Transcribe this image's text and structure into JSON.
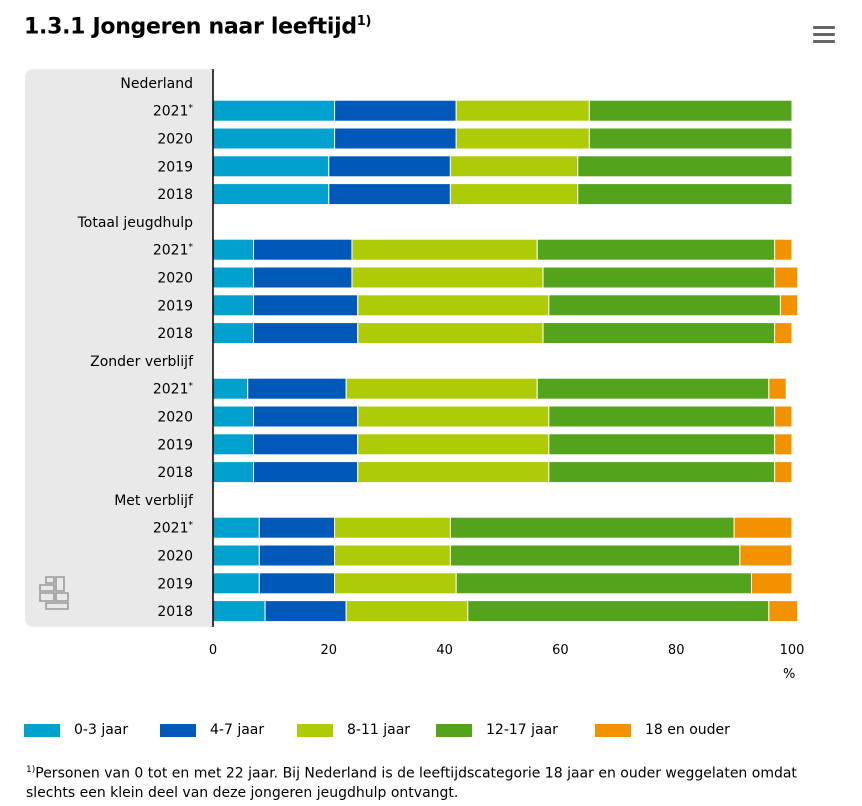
{
  "title": {
    "text": "1.3.1 Jongeren naar leeftijd",
    "superscript": "1)"
  },
  "menu": {
    "icon": "hamburger-menu-icon"
  },
  "chart_data": {
    "type": "bar",
    "orientation": "horizontal",
    "stacked": true,
    "percent_stacked": true,
    "xlabel": "%",
    "xlim": [
      0,
      100
    ],
    "xticks": [
      "0",
      "20",
      "40",
      "60",
      "80",
      "100"
    ],
    "grid": false,
    "legend_position": "bottom",
    "groups": [
      {
        "label": "Nederland",
        "categories": [
          "2021*",
          "2020",
          "2019",
          "2018"
        ]
      },
      {
        "label": "Totaal jeugdhulp",
        "categories": [
          "2021*",
          "2020",
          "2019",
          "2018"
        ]
      },
      {
        "label": "Zonder verblijf",
        "categories": [
          "2021*",
          "2020",
          "2019",
          "2018"
        ]
      },
      {
        "label": "Met verblijf",
        "categories": [
          "2021*",
          "2020",
          "2019",
          "2018"
        ]
      }
    ],
    "series": [
      {
        "name": "0-3 jaar",
        "color": "#00a1cd",
        "values": [
          21,
          21,
          20,
          20,
          7,
          7,
          7,
          7,
          6,
          7,
          7,
          7,
          8,
          8,
          8,
          9
        ]
      },
      {
        "name": "4-7 jaar",
        "color": "#0058b8",
        "values": [
          21,
          21,
          21,
          21,
          17,
          17,
          18,
          18,
          17,
          18,
          18,
          18,
          13,
          13,
          13,
          14
        ]
      },
      {
        "name": "8-11 jaar",
        "color": "#afcb05",
        "values": [
          23,
          23,
          22,
          22,
          32,
          33,
          33,
          32,
          33,
          33,
          33,
          33,
          20,
          20,
          21,
          21
        ]
      },
      {
        "name": "12-17 jaar",
        "color": "#53a31d",
        "values": [
          35,
          35,
          37,
          37,
          41,
          40,
          40,
          40,
          40,
          39,
          39,
          39,
          49,
          50,
          51,
          52
        ]
      },
      {
        "name": "18 en ouder",
        "color": "#f39200",
        "values": [
          0,
          0,
          0,
          0,
          3,
          4,
          3,
          3,
          3,
          3,
          3,
          3,
          10,
          9,
          7,
          5
        ]
      }
    ]
  },
  "footnote": {
    "superscript": "1)",
    "text": "Personen van 0 tot en met 22 jaar. Bij Nederland is de leeftijdscategorie 18 jaar en ouder weggelaten omdat slechts een klein deel van deze jongeren jeugdhulp ontvangt."
  },
  "logo": {
    "icon": "cbs-logo-icon"
  }
}
